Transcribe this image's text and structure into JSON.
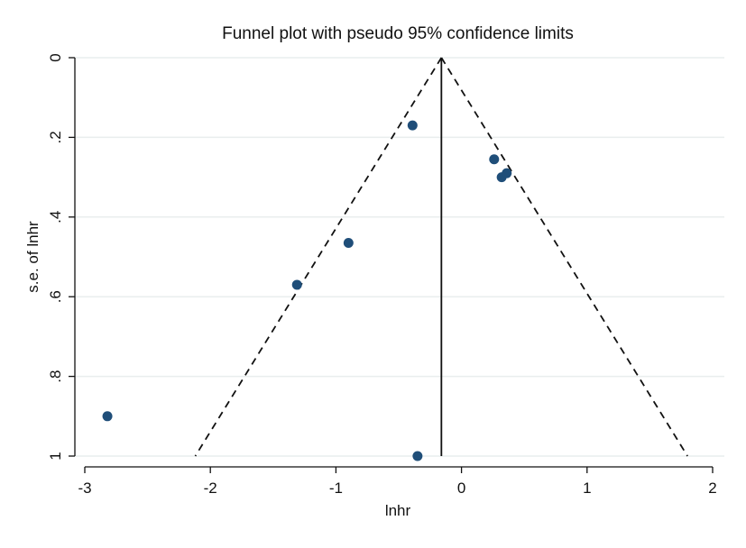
{
  "colors": {
    "background": "#ffffff",
    "plot_background": "#ffffff",
    "grid": "#e9eeee",
    "points": "#1f4e79",
    "lines": "#111111"
  },
  "chart_data": {
    "type": "scatter",
    "title": "Funnel plot with pseudo 95% confidence limits",
    "xlabel": "lnhr",
    "ylabel": "s.e. of lnhr",
    "xlim": [
      -3.1,
      2.1
    ],
    "ylim": [
      0,
      1.0
    ],
    "y_reversed": true,
    "grid": true,
    "xticks": [
      -3,
      -2,
      -1,
      0,
      1,
      2
    ],
    "xtick_labels": [
      "-3",
      "-2",
      "-1",
      "0",
      "1",
      "2"
    ],
    "yticks": [
      0,
      0.2,
      0.4,
      0.6,
      0.8,
      1.0
    ],
    "ytick_labels": [
      "0",
      ".2",
      ".4",
      ".6",
      ".8",
      "1"
    ],
    "points": [
      {
        "x": -2.82,
        "y": 0.9
      },
      {
        "x": -1.31,
        "y": 0.57
      },
      {
        "x": -0.9,
        "y": 0.465
      },
      {
        "x": -0.39,
        "y": 0.17
      },
      {
        "x": -0.35,
        "y": 1.0
      },
      {
        "x": 0.26,
        "y": 0.255
      },
      {
        "x": 0.32,
        "y": 0.3
      },
      {
        "x": 0.36,
        "y": 0.29
      }
    ],
    "pooled_estimate": -0.16,
    "confidence_level": 0.95,
    "z": 1.96
  }
}
